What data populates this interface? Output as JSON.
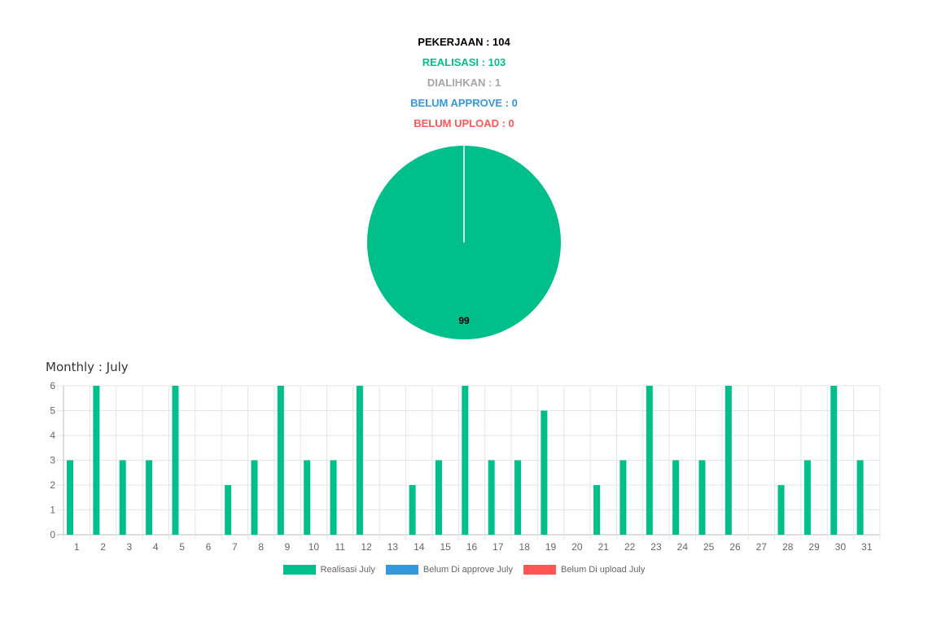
{
  "summary": {
    "pekerjaan": "PEKERJAAN : 104",
    "realisasi": "REALISASI : 103",
    "dialihkan": "DIALIHKAN : 1",
    "belum_approve": "BELUM APPROVE : 0",
    "belum_upload": "BELUM UPLOAD : 0"
  },
  "colors": {
    "pekerjaan": "#000000",
    "realisasi": "#00bf8a",
    "dialihkan": "#a6a6a6",
    "belum_approve": "#3498db",
    "belum_upload": "#ff5555"
  },
  "monthly_title": "Monthly : July",
  "chart_data": [
    {
      "type": "pie",
      "slices": [
        {
          "value": 99,
          "color": "#00bf8a",
          "label": "99"
        },
        {
          "value": 0,
          "color": "#3498db"
        },
        {
          "value": 0,
          "color": "#ff5555"
        }
      ]
    },
    {
      "type": "bar",
      "categories": [
        "1",
        "2",
        "3",
        "4",
        "5",
        "6",
        "7",
        "8",
        "9",
        "10",
        "11",
        "12",
        "13",
        "14",
        "15",
        "16",
        "17",
        "18",
        "19",
        "20",
        "21",
        "22",
        "23",
        "24",
        "25",
        "26",
        "27",
        "28",
        "29",
        "30",
        "31"
      ],
      "series": [
        {
          "name": "Realisasi July",
          "color": "#00bf8a",
          "values": [
            3,
            6,
            3,
            3,
            6,
            0,
            2,
            3,
            6,
            3,
            3,
            6,
            0,
            2,
            3,
            6,
            3,
            3,
            5,
            0,
            2,
            3,
            6,
            3,
            3,
            6,
            0,
            2,
            3,
            6,
            3
          ]
        },
        {
          "name": "Belum Di approve July",
          "color": "#3498db",
          "values": [
            0,
            0,
            0,
            0,
            0,
            0,
            0,
            0,
            0,
            0,
            0,
            0,
            0,
            0,
            0,
            0,
            0,
            0,
            0,
            0,
            0,
            0,
            0,
            0,
            0,
            0,
            0,
            0,
            0,
            0,
            0
          ]
        },
        {
          "name": "Belum Di upload July",
          "color": "#ff5555",
          "values": [
            0,
            0,
            0,
            0,
            0,
            0,
            0,
            0,
            0,
            0,
            0,
            0,
            0,
            0,
            0,
            0,
            0,
            0,
            0,
            0,
            0,
            0,
            0,
            0,
            0,
            0,
            0,
            0,
            0,
            0,
            0
          ]
        }
      ],
      "ylim": [
        0,
        6
      ],
      "yticks": [
        0,
        1,
        2,
        3,
        4,
        5,
        6
      ],
      "grid": true,
      "legend": "bottom"
    }
  ]
}
